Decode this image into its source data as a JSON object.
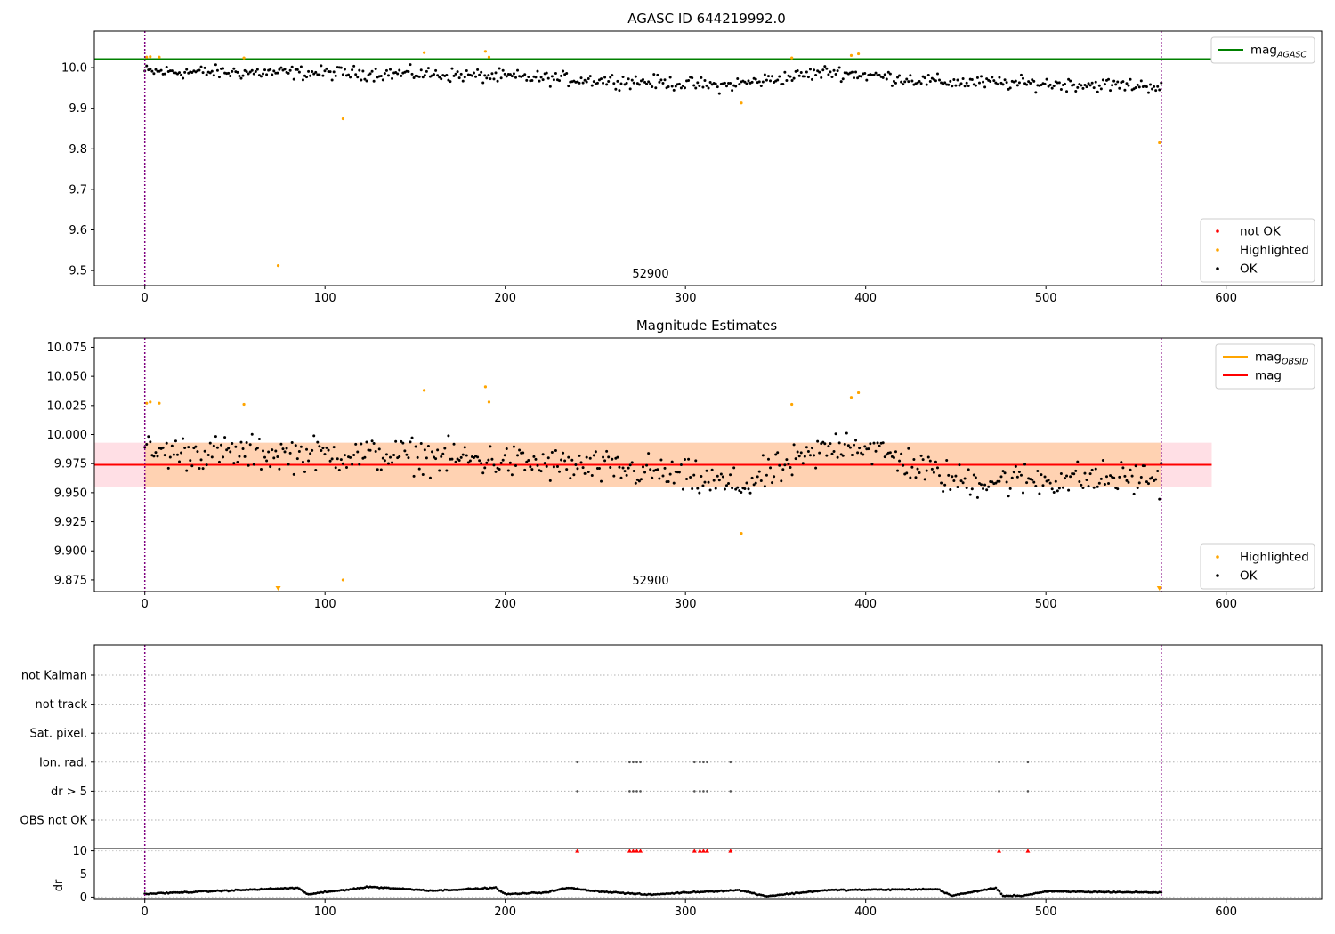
{
  "figure": {
    "title_top": "AGASC ID 644219992.0",
    "title_mid": "Magnitude Estimates",
    "mid_annotation": "52900",
    "top_annotation": "52900"
  },
  "colors": {
    "ok": "#000000",
    "highlighted": "#ffa500",
    "not_ok": "#ff0000",
    "mag_agasc": "#008000",
    "mag_obsid": "#ffa500",
    "mag": "#ff0000",
    "boundary": "#800080"
  },
  "chart_data": [
    {
      "type": "scatter",
      "title": "AGASC ID 644219992.0",
      "annotation": "52900",
      "xlim": [
        -28,
        653
      ],
      "ylim": [
        9.463,
        10.09
      ],
      "x_ticks": [
        0,
        100,
        200,
        300,
        400,
        500,
        600
      ],
      "y_ticks": [
        9.5,
        9.6,
        9.7,
        9.8,
        9.9,
        10.0
      ],
      "y_tick_labels": [
        "9.5",
        "9.6",
        "9.7",
        "9.8",
        "9.9",
        "10.0"
      ],
      "vlines": [
        0,
        564
      ],
      "hlines": [
        {
          "name": "mag_AGASC",
          "y": 10.021,
          "x0": -28,
          "x1": 592
        }
      ],
      "legend_top": {
        "placement": "top-right",
        "entries": [
          {
            "label": "mag",
            "sub": "AGASC",
            "style": "line",
            "color": "#008000"
          }
        ]
      },
      "legend_bottom": {
        "placement": "bottom-right",
        "entries": [
          {
            "label": "not OK",
            "style": "dot",
            "color": "#ff0000"
          },
          {
            "label": "Highlighted",
            "style": "dot",
            "color": "#ffa500"
          },
          {
            "label": "OK",
            "style": "dot",
            "color": "#000000"
          }
        ]
      },
      "ok_points": {
        "n": 560,
        "x_start": 0,
        "x_end": 564,
        "trend": [
          [
            0,
            9.99
          ],
          [
            150,
            9.985
          ],
          [
            280,
            9.965
          ],
          [
            320,
            9.955
          ],
          [
            380,
            9.99
          ],
          [
            440,
            9.965
          ],
          [
            564,
            9.955
          ]
        ],
        "spread": 0.025
      },
      "highlighted_points": [
        [
          1,
          10.026
        ],
        [
          3,
          10.027
        ],
        [
          8,
          10.026
        ],
        [
          55,
          10.024
        ],
        [
          74,
          9.512
        ],
        [
          110,
          9.874
        ],
        [
          155,
          10.037
        ],
        [
          189,
          10.04
        ],
        [
          191,
          10.026
        ],
        [
          331,
          9.913
        ],
        [
          359,
          10.024
        ],
        [
          392,
          10.03
        ],
        [
          396,
          10.034
        ],
        [
          563,
          9.815
        ]
      ]
    },
    {
      "type": "scatter",
      "title": "Magnitude Estimates",
      "annotation": "52900",
      "xlim": [
        -28,
        653
      ],
      "ylim": [
        9.865,
        10.083
      ],
      "x_ticks": [
        0,
        100,
        200,
        300,
        400,
        500,
        600
      ],
      "y_ticks": [
        9.875,
        9.9,
        9.925,
        9.95,
        9.975,
        10.0,
        10.025,
        10.05,
        10.075
      ],
      "y_tick_labels": [
        "9.875",
        "9.900",
        "9.925",
        "9.950",
        "9.975",
        "10.000",
        "10.025",
        "10.050",
        "10.075"
      ],
      "vlines": [
        0,
        564
      ],
      "mag_line": {
        "y": 9.974,
        "x0": -28,
        "x1": 592
      },
      "mag_band": {
        "y0": 9.955,
        "y1": 9.993,
        "x0": -28,
        "x1": 592
      },
      "obsid_band": {
        "y0": 9.955,
        "y1": 9.993,
        "x0": 0,
        "x1": 564
      },
      "legend_top": {
        "placement": "top-right",
        "entries": [
          {
            "label": "mag",
            "sub": "OBSID",
            "style": "line",
            "color": "#ffa500"
          },
          {
            "label": "mag",
            "style": "line",
            "color": "#ff0000"
          }
        ]
      },
      "legend_bottom": {
        "placement": "bottom-right",
        "entries": [
          {
            "label": "Highlighted",
            "style": "dot",
            "color": "#ffa500"
          },
          {
            "label": "OK",
            "style": "dot",
            "color": "#000000"
          }
        ]
      },
      "ok_points": {
        "n": 560,
        "x_start": 0,
        "x_end": 564,
        "trend": [
          [
            0,
            9.985
          ],
          [
            150,
            9.982
          ],
          [
            280,
            9.968
          ],
          [
            330,
            9.955
          ],
          [
            390,
            9.995
          ],
          [
            450,
            9.96
          ],
          [
            564,
            9.963
          ]
        ],
        "spread": 0.022
      },
      "highlighted_points": [
        [
          1,
          10.027
        ],
        [
          3,
          10.028
        ],
        [
          8,
          10.027
        ],
        [
          55,
          10.026
        ],
        [
          155,
          10.038
        ],
        [
          189,
          10.041
        ],
        [
          191,
          10.028
        ],
        [
          331,
          9.915
        ],
        [
          359,
          10.026
        ],
        [
          392,
          10.032
        ],
        [
          396,
          10.036
        ],
        [
          110,
          9.875
        ]
      ],
      "below_range_markers": [
        74,
        563
      ]
    },
    {
      "type": "scatter",
      "xlim": [
        -28,
        653
      ],
      "x_ticks": [
        0,
        100,
        200,
        300,
        400,
        500,
        600
      ],
      "vlines": [
        0,
        564
      ],
      "flag_rows": [
        "not Kalman",
        "not track",
        "Sat. pixel.",
        "Ion. rad.",
        "dr > 5",
        "OBS not OK"
      ],
      "flag_events": {
        "Ion. rad.": [
          240,
          269,
          271,
          273,
          275,
          305,
          308,
          310,
          312,
          325,
          474,
          490
        ],
        "dr > 5": [
          240,
          269,
          271,
          273,
          275,
          305,
          308,
          310,
          312,
          325,
          474,
          490
        ]
      },
      "dr_panel": {
        "ylabel": "dr",
        "ylim": [
          -0.5,
          10.5
        ],
        "y_ticks": [
          0,
          5,
          10
        ],
        "y_tick_labels": [
          "0",
          "5",
          "10"
        ],
        "capped_markers": [
          240,
          269,
          271,
          273,
          275,
          305,
          308,
          310,
          312,
          325,
          474,
          490
        ],
        "trend": [
          [
            0,
            0.7
          ],
          [
            85,
            2.0
          ],
          [
            90,
            0.6
          ],
          [
            125,
            2.2
          ],
          [
            160,
            1.4
          ],
          [
            195,
            2.0
          ],
          [
            200,
            0.6
          ],
          [
            222,
            1.0
          ],
          [
            235,
            2.0
          ],
          [
            250,
            1.3
          ],
          [
            280,
            0.5
          ],
          [
            300,
            1.0
          ],
          [
            330,
            1.5
          ],
          [
            345,
            0.2
          ],
          [
            360,
            0.8
          ],
          [
            378,
            1.5
          ],
          [
            440,
            1.7
          ],
          [
            448,
            0.3
          ],
          [
            472,
            2.0
          ],
          [
            476,
            0.3
          ],
          [
            487,
            0.3
          ],
          [
            500,
            1.2
          ],
          [
            564,
            1.0
          ]
        ]
      }
    }
  ]
}
